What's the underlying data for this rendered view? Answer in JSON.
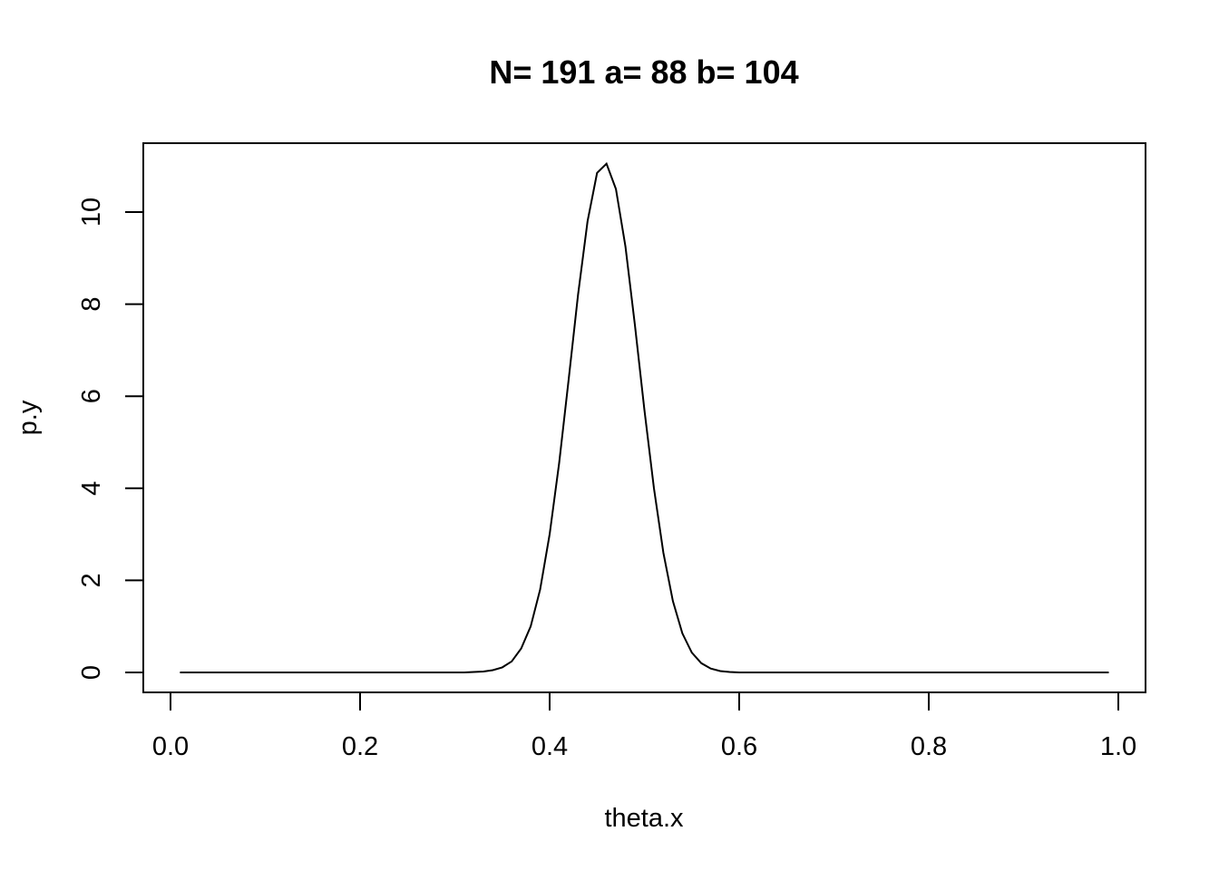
{
  "chart_data": {
    "type": "line",
    "title": "N= 191 a= 88 b= 104",
    "xlabel": "theta.x",
    "ylabel": "p.y",
    "xlim": [
      0.0,
      1.0
    ],
    "ylim": [
      0,
      11
    ],
    "x_ticks": [
      "0.0",
      "0.2",
      "0.4",
      "0.6",
      "0.8",
      "1.0"
    ],
    "y_ticks": [
      "0",
      "2",
      "4",
      "6",
      "8",
      "10"
    ],
    "grid": false,
    "legend": "none",
    "line_color": "#000000",
    "series": [
      {
        "x": [
          0.01,
          0.02,
          0.03,
          0.04,
          0.05,
          0.06,
          0.07,
          0.08,
          0.09,
          0.1,
          0.11,
          0.12,
          0.13,
          0.14,
          0.15,
          0.16,
          0.17,
          0.18,
          0.19,
          0.2,
          0.21,
          0.22,
          0.23,
          0.24,
          0.25,
          0.26,
          0.27,
          0.28,
          0.29,
          0.3,
          0.31,
          0.32,
          0.33,
          0.34,
          0.35,
          0.36,
          0.37,
          0.38,
          0.39,
          0.4,
          0.41,
          0.42,
          0.43,
          0.44,
          0.45,
          0.46,
          0.47,
          0.48,
          0.49,
          0.5,
          0.51,
          0.52,
          0.53,
          0.54,
          0.55,
          0.56,
          0.57,
          0.58,
          0.59,
          0.6,
          0.61,
          0.62,
          0.63,
          0.64,
          0.65,
          0.66,
          0.67,
          0.68,
          0.69,
          0.7,
          0.71,
          0.72,
          0.73,
          0.74,
          0.75,
          0.76,
          0.77,
          0.78,
          0.79,
          0.8,
          0.81,
          0.82,
          0.83,
          0.84,
          0.85,
          0.86,
          0.87,
          0.88,
          0.89,
          0.9,
          0.91,
          0.92,
          0.93,
          0.94,
          0.95,
          0.96,
          0.97,
          0.98,
          0.99
        ],
        "y": [
          0,
          0,
          0,
          0,
          0,
          0,
          0,
          0,
          0,
          0,
          0,
          0,
          0,
          0,
          0,
          0,
          0,
          0,
          0,
          0,
          0,
          0,
          0,
          0,
          0,
          0,
          0,
          0,
          0,
          0,
          0,
          0.01,
          0.02,
          0.05,
          0.11,
          0.24,
          0.52,
          1.0,
          1.8,
          3.0,
          4.55,
          6.35,
          8.2,
          9.8,
          10.85,
          11.05,
          10.5,
          9.25,
          7.55,
          5.7,
          4.0,
          2.6,
          1.55,
          0.85,
          0.43,
          0.2,
          0.085,
          0.03,
          0.01,
          0,
          0,
          0,
          0,
          0,
          0,
          0,
          0,
          0,
          0,
          0,
          0,
          0,
          0,
          0,
          0,
          0,
          0,
          0,
          0,
          0,
          0,
          0,
          0,
          0,
          0,
          0,
          0,
          0,
          0,
          0,
          0,
          0,
          0,
          0,
          0,
          0,
          0,
          0,
          0
        ]
      }
    ]
  }
}
